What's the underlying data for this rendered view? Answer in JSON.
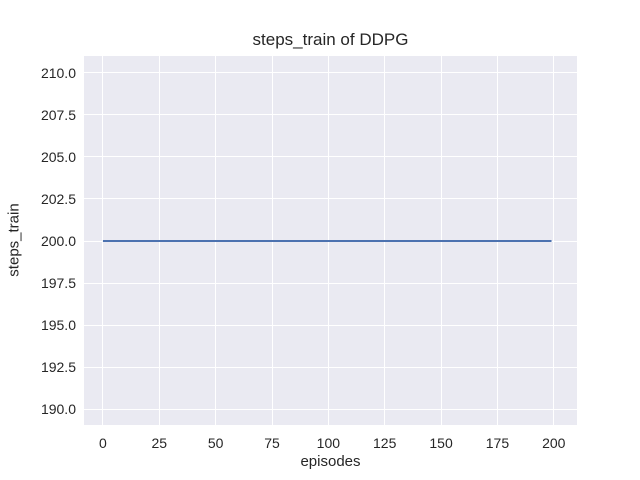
{
  "chart_data": {
    "type": "line",
    "title": "steps_train of DDPG",
    "xlabel": "episodes",
    "ylabel": "steps_train",
    "xlim": [
      -8.4,
      210.3
    ],
    "ylim": [
      189.05,
      211.01
    ],
    "x_ticks": [
      0,
      25,
      50,
      75,
      100,
      125,
      150,
      175,
      200
    ],
    "x_tick_labels": [
      "0",
      "25",
      "50",
      "75",
      "100",
      "125",
      "150",
      "175",
      "200"
    ],
    "y_ticks": [
      190.0,
      192.5,
      195.0,
      197.5,
      200.0,
      202.5,
      205.0,
      207.5,
      210.0
    ],
    "y_tick_labels": [
      "190.0",
      "192.5",
      "195.0",
      "197.5",
      "200.0",
      "202.5",
      "205.0",
      "207.5",
      "210.0"
    ],
    "grid": true,
    "legend": "none",
    "colors": {
      "axes_background": "#eaeaf2",
      "grid_color": "#ffffff",
      "text_color": "#262626",
      "line_color": "#4c72b0"
    },
    "series": [
      {
        "name": "steps_train",
        "x": [
          0,
          199
        ],
        "y": [
          200,
          200
        ],
        "color": "#4c72b0",
        "linewidth": 2
      }
    ]
  }
}
